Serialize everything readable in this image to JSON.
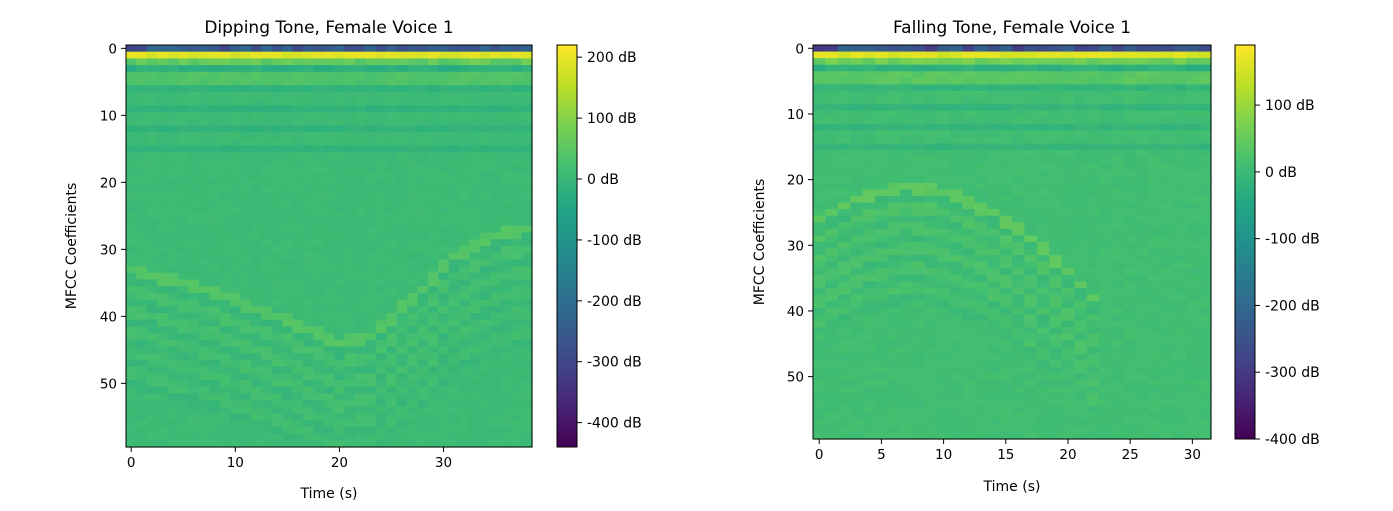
{
  "chart_data": [
    {
      "type": "heatmap",
      "title": "Dipping Tone, Female Voice 1",
      "xlabel": "Time (s)",
      "ylabel": "MFCC Coefficients",
      "n_frames": 39,
      "n_coeffs": 60,
      "xlim": [
        -0.5,
        38.5
      ],
      "ylim": [
        59.5,
        -0.5
      ],
      "xticks": [
        0,
        10,
        20,
        30
      ],
      "yticks": [
        0,
        10,
        20,
        30,
        40,
        50
      ],
      "colormap": "viridis",
      "colorbar": {
        "vmin": -440,
        "vmax": 220,
        "ticks": [
          200,
          100,
          0,
          -100,
          -200,
          -300,
          -400
        ],
        "tick_labels": [
          "200 dB",
          "100 dB",
          "0 dB",
          "-100 dB",
          "-200 dB",
          "-300 dB",
          "-400 dB"
        ]
      },
      "contour": {
        "shape": "dip",
        "points": [
          [
            0,
            33
          ],
          [
            7,
            36
          ],
          [
            14,
            40
          ],
          [
            20,
            44
          ],
          [
            23,
            43
          ],
          [
            28,
            36
          ],
          [
            31,
            31
          ],
          [
            35,
            28
          ],
          [
            38,
            27
          ]
        ]
      }
    },
    {
      "type": "heatmap",
      "title": "Falling Tone, Female Voice 1",
      "xlabel": "Time (s)",
      "ylabel": "MFCC Coefficients",
      "n_frames": 32,
      "n_coeffs": 60,
      "xlim": [
        -0.5,
        31.5
      ],
      "ylim": [
        59.5,
        -0.5
      ],
      "xticks": [
        0,
        5,
        10,
        15,
        20,
        25,
        30
      ],
      "yticks": [
        0,
        10,
        20,
        30,
        40,
        50
      ],
      "colormap": "viridis",
      "colorbar": {
        "vmin": -400,
        "vmax": 190,
        "ticks": [
          100,
          0,
          -100,
          -200,
          -300,
          -400
        ],
        "tick_labels": [
          "100 dB",
          "0 dB",
          "-100 dB",
          "-200 dB",
          "-300 dB",
          "-400 dB"
        ]
      },
      "contour": {
        "shape": "fall",
        "points": [
          [
            0,
            26
          ],
          [
            3,
            23
          ],
          [
            7,
            21
          ],
          [
            10,
            22
          ],
          [
            14,
            25
          ],
          [
            17,
            29
          ],
          [
            20,
            34
          ],
          [
            22,
            38
          ]
        ]
      }
    }
  ]
}
